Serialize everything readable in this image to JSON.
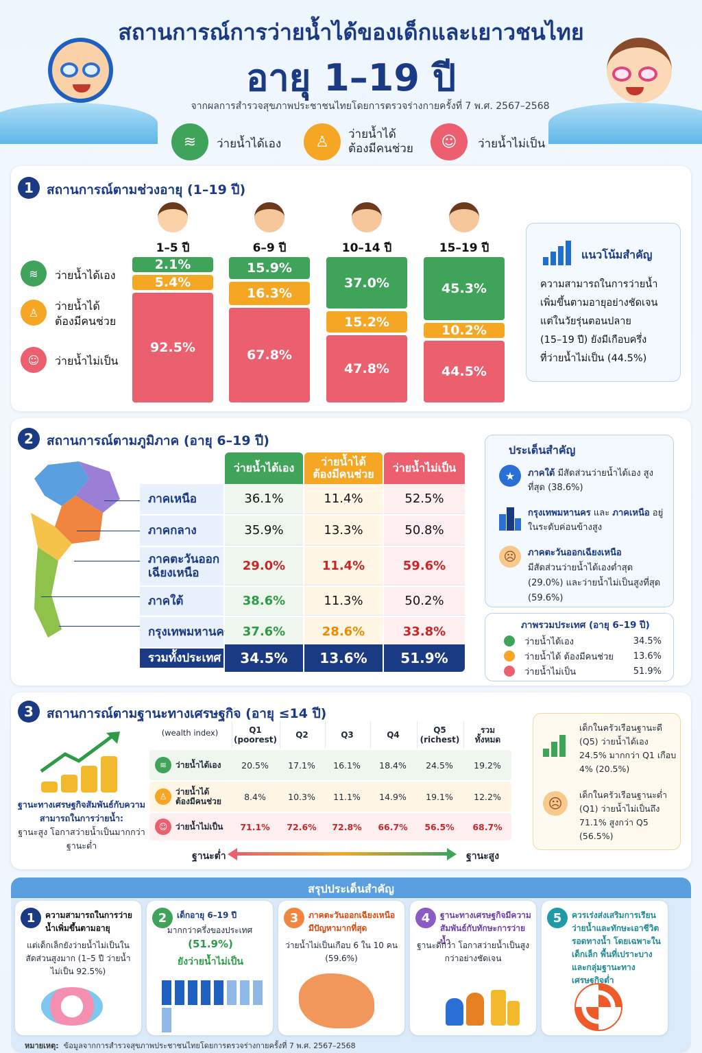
{
  "header": {
    "title_line1": "สถานการณ์การว่ายน้ำได้ของเด็กและเยาวชนไทย",
    "title_line2": "อายุ 1–19 ปี",
    "subtitle": "จากผลการสำรวจสุขภาพประชาชนไทยโดยการตรวจร่างกายครั้งที่ 7 พ.ศ. 2567–2568"
  },
  "legend": {
    "can_swim": "ว่ายน้ำได้เอง",
    "need_help_l1": "ว่ายน้ำได้",
    "need_help_l2": "ต้องมีคนช่วย",
    "cannot_swim": "ว่ายน้ำไม่เป็น"
  },
  "colors": {
    "can_swim": "#3fa45a",
    "need_help": "#f5a623",
    "cannot_swim": "#ec5f6e",
    "navy": "#1b3a84"
  },
  "section1": {
    "num": "1",
    "title": "สถานการณ์ตามช่วงอายุ (1–19 ปี)",
    "row_labels": {
      "can": "ว่ายน้ำได้เอง",
      "help1": "ว่ายน้ำได้",
      "help2": "ต้องมีคนช่วย",
      "cannot": "ว่ายน้ำไม่เป็น"
    },
    "ages": [
      "1–5 ปี",
      "6–9 ปี",
      "10–14 ปี",
      "15–19 ปี"
    ],
    "value_labels": [
      [
        "2.1%",
        "5.4%",
        "92.5%"
      ],
      [
        "15.9%",
        "16.3%",
        "67.8%"
      ],
      [
        "37.0%",
        "15.2%",
        "47.8%"
      ],
      [
        "45.3%",
        "10.2%",
        "44.5%"
      ]
    ],
    "trend_title": "แนวโน้มสำคัญ",
    "trend_text": [
      "ความสามารถในการว่ายน้ำ",
      "เพิ่มขึ้นตามอายุอย่างชัดเจน",
      "แต่ในวัยรุ่นตอนปลาย",
      "(15–19 ปี) ยังมีเกือบครึ่ง",
      "ที่ว่ายน้ำไม่เป็น (44.5%)"
    ]
  },
  "chart_data": {
    "type": "bar",
    "stacked": true,
    "categories": [
      "1–5 ปี",
      "6–9 ปี",
      "10–14 ปี",
      "15–19 ปี"
    ],
    "series": [
      {
        "name": "ว่ายน้ำได้เอง",
        "values": [
          2.1,
          15.9,
          37.0,
          45.3
        ]
      },
      {
        "name": "ว่ายน้ำได้ ต้องมีคนช่วย",
        "values": [
          5.4,
          16.3,
          15.2,
          10.2
        ]
      },
      {
        "name": "ว่ายน้ำไม่เป็น",
        "values": [
          92.5,
          67.8,
          47.8,
          44.5
        ]
      }
    ]
  },
  "section2": {
    "num": "2",
    "title": "สถานการณ์ตามภูมิภาค (อายุ 6–19 ปี)",
    "headers": [
      "ว่ายน้ำได้เอง",
      "ว่ายน้ำได้\nต้องมีคนช่วย",
      "ว่ายน้ำไม่เป็น"
    ],
    "rows": [
      {
        "name": "ภาคเหนือ",
        "v": [
          "36.1%",
          "11.4%",
          "52.5%"
        ]
      },
      {
        "name": "ภาคกลาง",
        "v": [
          "35.9%",
          "13.3%",
          "50.8%"
        ]
      },
      {
        "name": "ภาคตะวันออก\nเฉียงเหนือ",
        "v": [
          "29.0%",
          "11.4%",
          "59.6%"
        ]
      },
      {
        "name": "ภาคใต้",
        "v": [
          "38.6%",
          "11.3%",
          "50.2%"
        ]
      },
      {
        "name": "กรุงเทพมหานคร",
        "v": [
          "37.6%",
          "28.6%",
          "33.8%"
        ]
      }
    ],
    "total": {
      "name": "รวมทั้งประเทศ",
      "v": [
        "34.5%",
        "13.6%",
        "51.9%"
      ]
    },
    "key_title": "ประเด็นสำคัญ",
    "key1": {
      "hl": "ภาคใต้",
      "rest": " มีสัดส่วนว่ายน้ำได้เอง สูงที่สุด (38.6%)"
    },
    "key2": {
      "hl1": "กรุงเทพมหานคร",
      "mid": " และ ",
      "hl2": "ภาคเหนือ",
      "rest": " อยู่ในระดับค่อนข้างสูง"
    },
    "key3": {
      "hl": "ภาคตะวันออกเฉียงเหนือ",
      "rest": "มีสัดส่วนว่ายน้ำได้เองต่ำสุด (29.0%) และว่ายน้ำไม่เป็นสูงที่สุด (59.6%)"
    },
    "overall_title": "ภาพรวมประเทศ (อายุ 6–19 ปี)",
    "overall": [
      {
        "label": "ว่ายน้ำได้เอง",
        "value": "34.5%"
      },
      {
        "label": "ว่ายน้ำได้ ต้องมีคนช่วย",
        "value": "13.6%"
      },
      {
        "label": "ว่ายน้ำไม่เป็น",
        "value": "51.9%"
      }
    ]
  },
  "section3": {
    "num": "3",
    "title": "สถานการณ์ตามฐานะทางเศรษฐกิจ (อายุ ≤14 ปี)",
    "corner": "(wealth index)",
    "cols": [
      "Q1\n(poorest)",
      "Q2",
      "Q3",
      "Q4",
      "Q5\n(richest)",
      "รวม\nทั้งหมด"
    ],
    "rows": [
      {
        "label": "ว่ายน้ำได้เอง",
        "v": [
          "20.5%",
          "17.1%",
          "16.1%",
          "18.4%",
          "24.5%",
          "19.2%"
        ]
      },
      {
        "label": "ว่ายน้ำได้\nต้องมีคนช่วย",
        "v": [
          "8.4%",
          "10.3%",
          "11.1%",
          "14.9%",
          "19.1%",
          "12.2%"
        ]
      },
      {
        "label": "ว่ายน้ำไม่เป็น",
        "v": [
          "71.1%",
          "72.6%",
          "72.8%",
          "66.7%",
          "56.5%",
          "68.7%"
        ]
      }
    ],
    "left_bold": "ฐานะทางเศรษฐกิจสัมพันธ์กับความสามารถในการว่ายน้ำ:",
    "left_rest": "ฐานะสูง โอกาสว่ายน้ำเป็นมากกว่าฐานะต่ำ",
    "low": "ฐานะต่ำ",
    "high": "ฐานะสูง",
    "note1": "เด็กในครัวเรือนฐานะดี (Q5) ว่ายน้ำได้เอง 24.5% มากกว่า Q1 เกือบ 4% (20.5%)",
    "note2": "เด็กในครัวเรือนฐานะต่ำ (Q1) ว่ายน้ำไม่เป็นถึง 71.1% สูงกว่า Q5 (56.5%)"
  },
  "summary": {
    "title": "สรุปประเด็นสำคัญ",
    "cards": [
      {
        "num": "1",
        "bold": "ความสามารถในการว่ายน้ำเพิ่มขึ้นตามอายุ",
        "text": "แต่เด็กเล็กยังว่ายน้ำไม่เป็นในสัดส่วนสูงมาก (1–5 ปี ว่ายน้ำไม่เป็น 92.5%)"
      },
      {
        "num": "2",
        "bold": "เด็กอายุ 6–19 ปี",
        "text": "มากกว่าครึ่งของประเทศ",
        "pct": "(51.9%)",
        "tail": "ยังว่ายน้ำไม่เป็น"
      },
      {
        "num": "3",
        "bold": "ภาคตะวันออกเฉียงเหนือมีปัญหามากที่สุด",
        "text": "ว่ายน้ำไม่เป็นเกือบ 6 ใน 10 คน (59.6%)"
      },
      {
        "num": "4",
        "bold": "ฐานะทางเศรษฐกิจมีความสัมพันธ์กับทักษะการว่ายน้ำ",
        "text": "ฐานะดีกว่า โอกาสว่ายน้ำเป็นสูงกว่าอย่างชัดเจน"
      },
      {
        "num": "5",
        "bold": "ควรเร่งส่งเสริมการเรียนว่ายน้ำและทักษะเอาชีวิตรอดทางน้ำ โดยเฉพาะในเด็กเล็ก พื้นที่เปราะบาง และกลุ่มฐานะทางเศรษฐกิจต่ำ",
        "text": ""
      }
    ]
  },
  "footer": {
    "label": "หมายเหตุ:",
    "text": "ข้อมูลจากการสำรวจสุขภาพประชาชนไทยโดยการตรวจร่างกายครั้งที่ 7 พ.ศ. 2567–2568"
  }
}
